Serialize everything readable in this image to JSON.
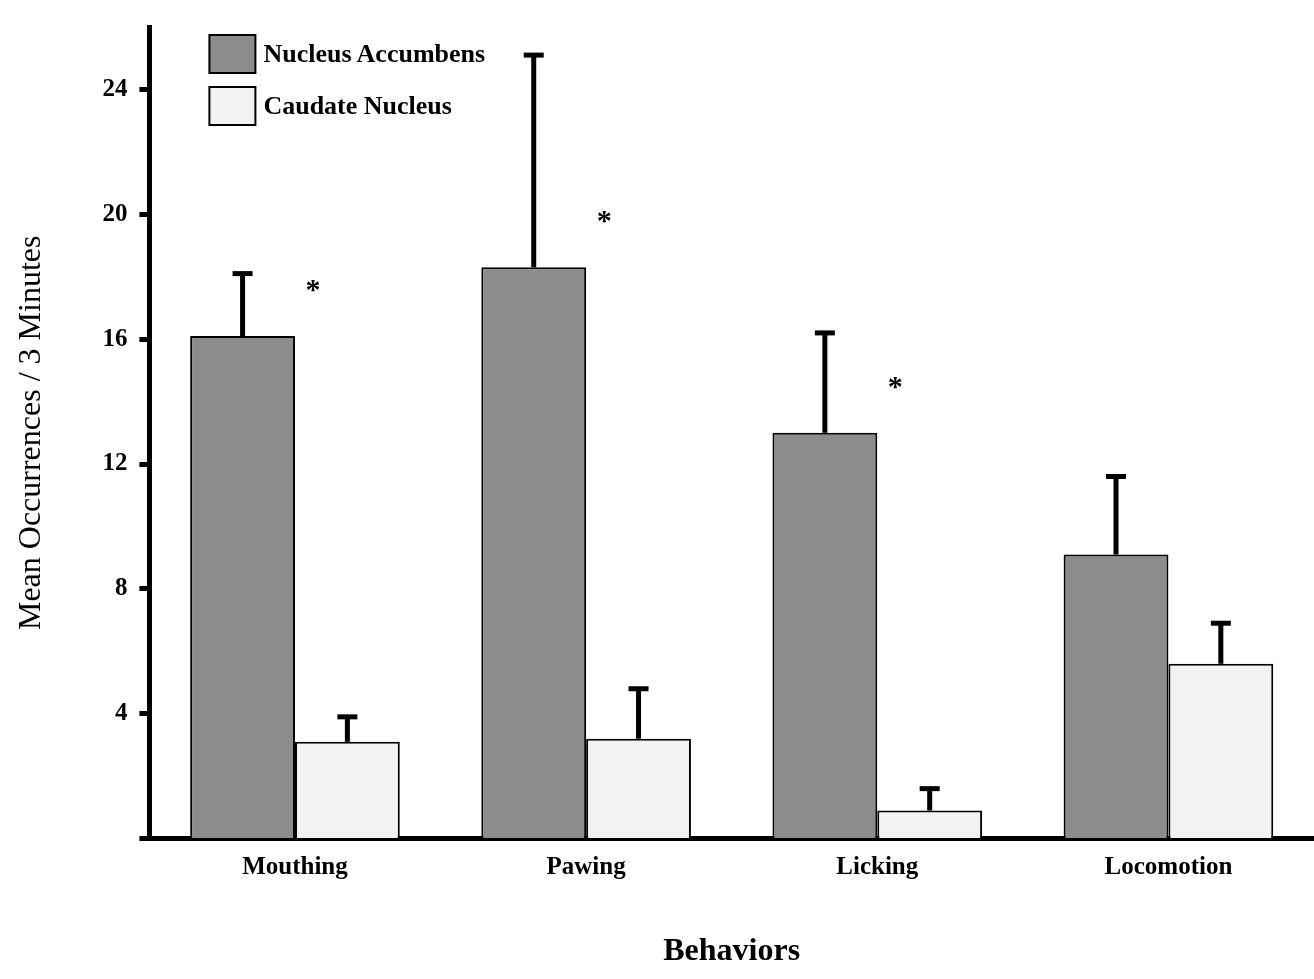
{
  "chart_data": {
    "type": "bar",
    "xlabel": "Behaviors",
    "ylabel": "Mean Occurrences / 3 Minutes",
    "categories": [
      "Mouthing",
      "Pawing",
      "Licking",
      "Locomotion"
    ],
    "series": [
      {
        "name": "Nucleus Accumbens",
        "color": "#8c8c8c",
        "values": [
          16.1,
          18.3,
          13,
          9.1
        ],
        "errors": [
          [
            16.1,
            18.1
          ],
          [
            18.3,
            25.1
          ],
          [
            13,
            16.2
          ],
          [
            9.1,
            11.6
          ]
        ]
      },
      {
        "name": "Caudate Nucleus",
        "color": "#f2f2f2",
        "values": [
          3.1,
          3.2,
          0.9,
          5.6
        ],
        "errors": [
          [
            3.1,
            3.9
          ],
          [
            3.2,
            4.8
          ],
          [
            0.9,
            1.6
          ],
          [
            5.6,
            6.9
          ]
        ]
      }
    ],
    "ylim": [
      0,
      26
    ],
    "yticks": [
      {
        "value": 0,
        "label": null
      },
      4,
      8,
      12,
      16,
      20,
      24
    ],
    "grid": false,
    "legend": "top left",
    "annotations": [
      "*",
      "*",
      "*"
    ]
  }
}
